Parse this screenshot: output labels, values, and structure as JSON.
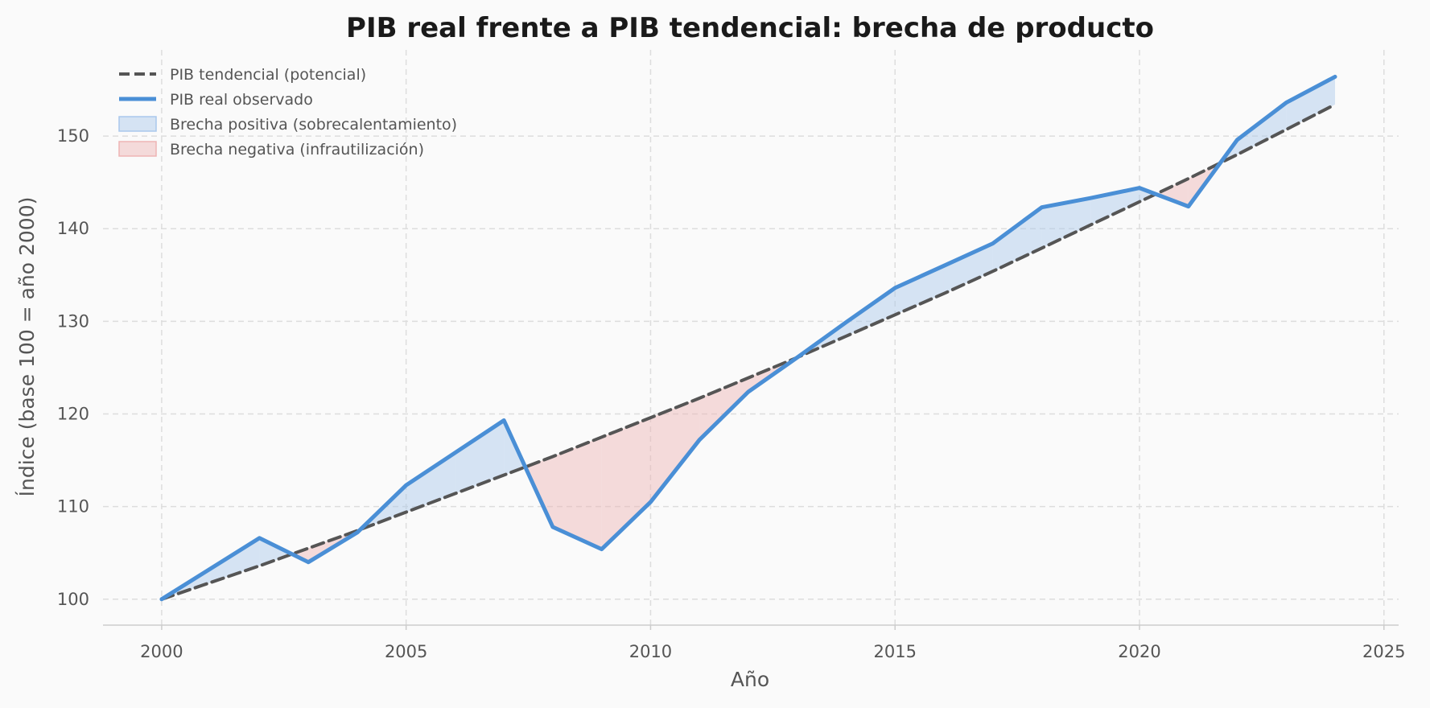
{
  "chart_data": {
    "type": "line",
    "title": "PIB real frente a PIB tendencial: brecha de producto",
    "xlabel": "Año",
    "ylabel": "Índice (base 100 = año 2000)",
    "xlim": [
      1998.8,
      2025.3
    ],
    "ylim": [
      97.2,
      159.3
    ],
    "x_ticks": [
      2000,
      2005,
      2010,
      2015,
      2020,
      2025
    ],
    "y_ticks": [
      100,
      110,
      120,
      130,
      140,
      150
    ],
    "grid": true,
    "legend_position": "top-left",
    "x": [
      2000,
      2001,
      2002,
      2003,
      2004,
      2005,
      2006,
      2007,
      2008,
      2009,
      2010,
      2011,
      2012,
      2013,
      2014,
      2015,
      2016,
      2017,
      2018,
      2019,
      2020,
      2021,
      2022,
      2023,
      2024
    ],
    "series": [
      {
        "name": "PIB tendencial (potencial)",
        "style": "dashed",
        "color": "#555555",
        "values": [
          100.0,
          101.8,
          103.6,
          105.5,
          107.4,
          109.4,
          111.4,
          113.4,
          115.4,
          117.5,
          119.6,
          121.7,
          123.9,
          126.1,
          128.4,
          130.7,
          133.0,
          135.4,
          137.9,
          140.4,
          142.9,
          145.4,
          148.0,
          150.7,
          153.4
        ]
      },
      {
        "name": "PIB real observado",
        "style": "solid",
        "color": "#4a8fd6",
        "values": [
          100.0,
          103.3,
          106.6,
          104.0,
          107.2,
          112.3,
          115.8,
          119.3,
          107.8,
          105.4,
          110.5,
          117.2,
          122.4,
          126.1,
          129.9,
          133.6,
          136.0,
          138.4,
          142.3,
          143.3,
          144.4,
          142.4,
          149.6,
          153.6,
          156.4
        ]
      }
    ],
    "fills": [
      {
        "name": "Brecha positiva (sobrecalentamiento)",
        "color": "#a9c8ec",
        "opacity": 0.45,
        "edge": "#a9c8ec"
      },
      {
        "name": "Brecha negativa (infrautilización)",
        "color": "#eeb4b4",
        "opacity": 0.45,
        "edge": "#eeb4b4"
      }
    ]
  }
}
